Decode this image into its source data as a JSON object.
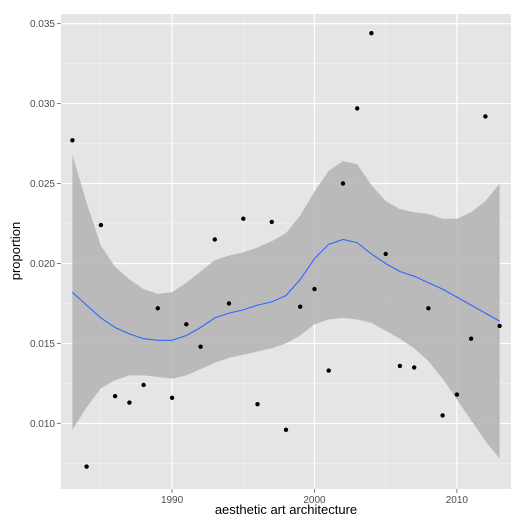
{
  "chart_data": {
    "type": "scatter",
    "title": "",
    "xlabel": "aesthetic art architecture",
    "ylabel": "proportion",
    "xlim": [
      1982.2,
      2013.8
    ],
    "ylim": [
      0.0059,
      0.0356
    ],
    "x_ticks": [
      1990,
      2000,
      2010
    ],
    "x_tick_labels": [
      "1990",
      "2000",
      "2010"
    ],
    "y_ticks": [
      0.01,
      0.015,
      0.02,
      0.025,
      0.03,
      0.035
    ],
    "y_tick_labels": [
      "0.010",
      "0.015",
      "0.020",
      "0.025",
      "0.030",
      "0.035"
    ],
    "grid": true,
    "legend": "none",
    "colors": {
      "panel": "#e5e5e5",
      "grid_major": "#ffffff",
      "grid_minor": "#f2f2f2",
      "points": "#000000",
      "smooth_line": "#3366ff",
      "ribbon": "#b3b3b3"
    },
    "points": {
      "x": [
        1983,
        1984,
        1985,
        1986,
        1987,
        1988,
        1989,
        1990,
        1991,
        1992,
        1993,
        1994,
        1995,
        1996,
        1997,
        1998,
        1999,
        2000,
        2001,
        2002,
        2003,
        2004,
        2005,
        2006,
        2007,
        2008,
        2009,
        2010,
        2011,
        2012,
        2013
      ],
      "y": [
        0.0277,
        0.0073,
        0.0224,
        0.0117,
        0.0113,
        0.0124,
        0.0172,
        0.0116,
        0.0162,
        0.0148,
        0.0215,
        0.0175,
        0.0228,
        0.0112,
        0.0226,
        0.0096,
        0.0173,
        0.0184,
        0.0133,
        0.025,
        0.0297,
        0.0344,
        0.0206,
        0.0136,
        0.0135,
        0.0172,
        0.0105,
        0.0118,
        0.0153,
        0.0292,
        0.0161
      ]
    },
    "smooth": {
      "x": [
        1983,
        1984,
        1985,
        1986,
        1987,
        1988,
        1989,
        1990,
        1991,
        1992,
        1993,
        1994,
        1995,
        1996,
        1997,
        1998,
        1999,
        2000,
        2001,
        2002,
        2003,
        2004,
        2005,
        2006,
        2007,
        2008,
        2009,
        2010,
        2011,
        2012,
        2013
      ],
      "y": [
        0.0182,
        0.0174,
        0.0166,
        0.016,
        0.0156,
        0.0153,
        0.0152,
        0.0152,
        0.0155,
        0.016,
        0.0166,
        0.0169,
        0.0171,
        0.0174,
        0.0176,
        0.018,
        0.019,
        0.0203,
        0.0212,
        0.0215,
        0.0213,
        0.0206,
        0.02,
        0.0195,
        0.0192,
        0.0188,
        0.0184,
        0.0179,
        0.0174,
        0.0169,
        0.0164
      ],
      "lower": [
        0.0096,
        0.011,
        0.0122,
        0.0127,
        0.013,
        0.013,
        0.0129,
        0.0128,
        0.013,
        0.0134,
        0.0138,
        0.0141,
        0.0143,
        0.0145,
        0.0147,
        0.015,
        0.0155,
        0.0162,
        0.0165,
        0.0166,
        0.0165,
        0.0163,
        0.0158,
        0.0153,
        0.0147,
        0.0139,
        0.0128,
        0.0115,
        0.0102,
        0.0089,
        0.0078
      ],
      "upper": [
        0.0268,
        0.0238,
        0.0211,
        0.0198,
        0.019,
        0.0184,
        0.0181,
        0.0182,
        0.0188,
        0.0195,
        0.0202,
        0.0205,
        0.0207,
        0.021,
        0.0214,
        0.0219,
        0.023,
        0.0245,
        0.0258,
        0.0264,
        0.0262,
        0.0249,
        0.0239,
        0.0234,
        0.0232,
        0.0231,
        0.0228,
        0.0228,
        0.0232,
        0.0239,
        0.025
      ]
    }
  }
}
